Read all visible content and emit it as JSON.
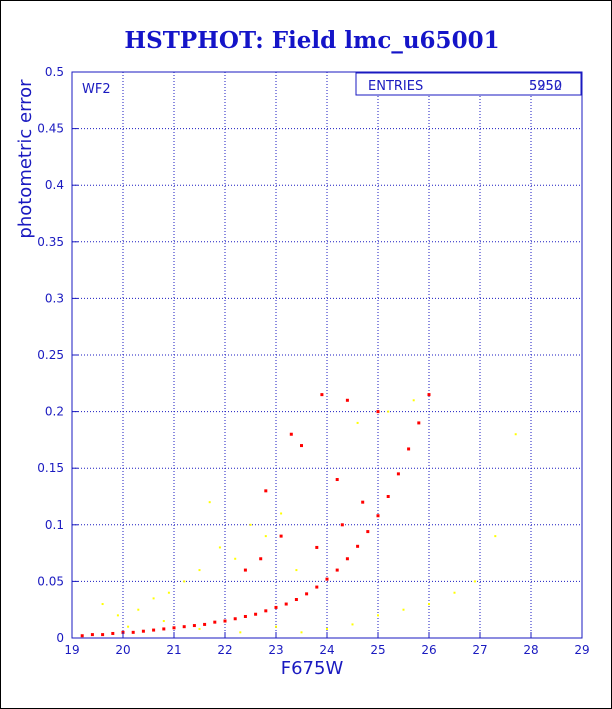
{
  "chart_data": {
    "type": "scatter",
    "title": "HSTPHOT: Field lmc_u65001",
    "xlabel": "F675W",
    "ylabel": "photometric error",
    "xlim": [
      19,
      29
    ],
    "ylim": [
      0,
      0.5
    ],
    "xticks": [
      "19",
      "20",
      "21",
      "22",
      "23",
      "24",
      "25",
      "26",
      "27",
      "28",
      "29"
    ],
    "yticks": [
      "0",
      "0.05",
      "0.1",
      "0.15",
      "0.2",
      "0.25",
      "0.3",
      "0.35",
      "0.4",
      "0.45",
      "0.5"
    ],
    "grid": true,
    "panel_label": "WF2",
    "stats_box": {
      "label": "ENTRIES",
      "values": [
        "5950",
        "5252"
      ]
    },
    "colors": {
      "axes": "#1a1ac0",
      "grid": "#1a1ac0",
      "main": "#ff0000",
      "secondary": "#ffff00"
    },
    "series": [
      {
        "color": "#ff0000",
        "description_of_relation": "main sequence",
        "points": [
          [
            19.2,
            0.002
          ],
          [
            19.4,
            0.003
          ],
          [
            19.6,
            0.003
          ],
          [
            19.8,
            0.004
          ],
          [
            20.0,
            0.005
          ],
          [
            20.2,
            0.005
          ],
          [
            20.4,
            0.006
          ],
          [
            20.6,
            0.007
          ],
          [
            20.8,
            0.008
          ],
          [
            21.0,
            0.009
          ],
          [
            21.2,
            0.01
          ],
          [
            21.4,
            0.011
          ],
          [
            21.6,
            0.012
          ],
          [
            21.8,
            0.014
          ],
          [
            22.0,
            0.015
          ],
          [
            22.2,
            0.017
          ],
          [
            22.4,
            0.019
          ],
          [
            22.6,
            0.021
          ],
          [
            22.8,
            0.024
          ],
          [
            23.0,
            0.027
          ],
          [
            23.2,
            0.03
          ],
          [
            23.4,
            0.034
          ],
          [
            23.6,
            0.039
          ],
          [
            23.8,
            0.045
          ],
          [
            24.0,
            0.052
          ],
          [
            24.2,
            0.06
          ],
          [
            24.4,
            0.07
          ],
          [
            24.6,
            0.081
          ],
          [
            24.8,
            0.094
          ],
          [
            25.0,
            0.108
          ],
          [
            25.2,
            0.125
          ],
          [
            25.4,
            0.145
          ],
          [
            25.6,
            0.167
          ],
          [
            25.8,
            0.19
          ],
          [
            26.0,
            0.215
          ],
          [
            23.9,
            0.215
          ],
          [
            24.4,
            0.21
          ],
          [
            25.0,
            0.2
          ],
          [
            23.3,
            0.18
          ],
          [
            23.5,
            0.17
          ],
          [
            24.2,
            0.14
          ],
          [
            22.8,
            0.13
          ],
          [
            24.7,
            0.12
          ],
          [
            23.1,
            0.09
          ],
          [
            22.7,
            0.07
          ],
          [
            23.8,
            0.08
          ],
          [
            22.4,
            0.06
          ],
          [
            24.3,
            0.1
          ]
        ]
      },
      {
        "color": "#ffff00",
        "points": [
          [
            19.6,
            0.03
          ],
          [
            19.9,
            0.02
          ],
          [
            20.3,
            0.025
          ],
          [
            20.6,
            0.035
          ],
          [
            20.9,
            0.04
          ],
          [
            21.2,
            0.05
          ],
          [
            21.5,
            0.06
          ],
          [
            21.7,
            0.12
          ],
          [
            21.9,
            0.08
          ],
          [
            22.2,
            0.07
          ],
          [
            22.5,
            0.1
          ],
          [
            22.8,
            0.09
          ],
          [
            23.1,
            0.11
          ],
          [
            23.4,
            0.06
          ],
          [
            23.0,
            0.01
          ],
          [
            23.5,
            0.005
          ],
          [
            24.0,
            0.008
          ],
          [
            24.5,
            0.012
          ],
          [
            25.0,
            0.02
          ],
          [
            25.5,
            0.025
          ],
          [
            26.0,
            0.03
          ],
          [
            26.5,
            0.04
          ],
          [
            26.9,
            0.05
          ],
          [
            27.3,
            0.09
          ],
          [
            27.7,
            0.18
          ],
          [
            25.2,
            0.2
          ],
          [
            25.7,
            0.21
          ],
          [
            24.6,
            0.19
          ],
          [
            22.3,
            0.005
          ],
          [
            21.5,
            0.008
          ],
          [
            20.8,
            0.015
          ],
          [
            20.1,
            0.01
          ]
        ]
      }
    ]
  }
}
